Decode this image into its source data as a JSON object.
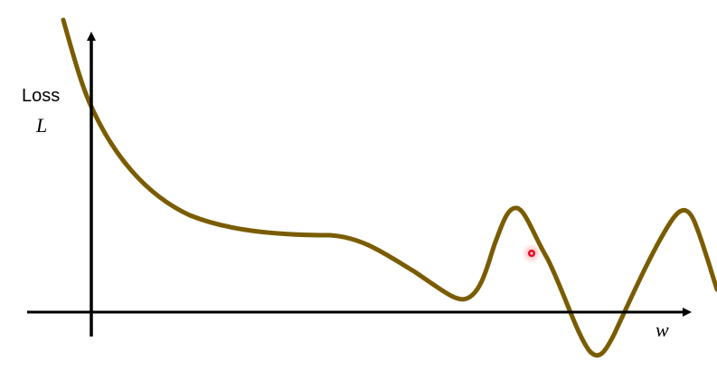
{
  "figure": {
    "y_axis_label": "Loss",
    "y_axis_symbol": "L",
    "x_axis_symbol": "w"
  },
  "colors": {
    "curve": "#7a5c00",
    "axes": "#000000",
    "marker": "#e8001c",
    "marker_glow": "#ff6b6b"
  }
}
